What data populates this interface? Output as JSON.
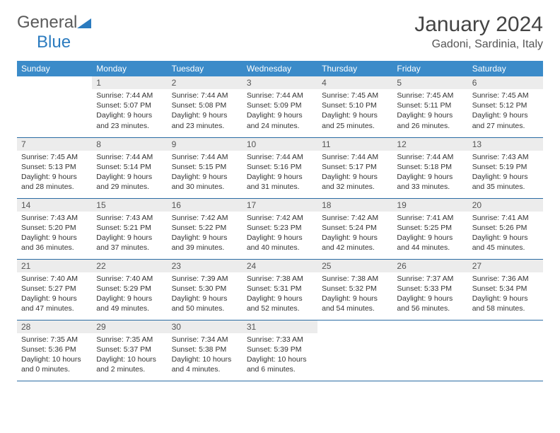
{
  "logo": {
    "text1": "General",
    "text2": "Blue"
  },
  "title": "January 2024",
  "location": "Gadoni, Sardinia, Italy",
  "colors": {
    "header_bg": "#3b8bc9",
    "header_text": "#ffffff",
    "daynum_bg": "#ececec",
    "row_border": "#2b6ca3",
    "logo_gray": "#5a5a5a",
    "logo_blue": "#2b7bbf"
  },
  "weekdays": [
    "Sunday",
    "Monday",
    "Tuesday",
    "Wednesday",
    "Thursday",
    "Friday",
    "Saturday"
  ],
  "start_offset": 1,
  "days": [
    {
      "n": "1",
      "sunrise": "7:44 AM",
      "sunset": "5:07 PM",
      "daylight": "9 hours and 23 minutes."
    },
    {
      "n": "2",
      "sunrise": "7:44 AM",
      "sunset": "5:08 PM",
      "daylight": "9 hours and 23 minutes."
    },
    {
      "n": "3",
      "sunrise": "7:44 AM",
      "sunset": "5:09 PM",
      "daylight": "9 hours and 24 minutes."
    },
    {
      "n": "4",
      "sunrise": "7:45 AM",
      "sunset": "5:10 PM",
      "daylight": "9 hours and 25 minutes."
    },
    {
      "n": "5",
      "sunrise": "7:45 AM",
      "sunset": "5:11 PM",
      "daylight": "9 hours and 26 minutes."
    },
    {
      "n": "6",
      "sunrise": "7:45 AM",
      "sunset": "5:12 PM",
      "daylight": "9 hours and 27 minutes."
    },
    {
      "n": "7",
      "sunrise": "7:45 AM",
      "sunset": "5:13 PM",
      "daylight": "9 hours and 28 minutes."
    },
    {
      "n": "8",
      "sunrise": "7:44 AM",
      "sunset": "5:14 PM",
      "daylight": "9 hours and 29 minutes."
    },
    {
      "n": "9",
      "sunrise": "7:44 AM",
      "sunset": "5:15 PM",
      "daylight": "9 hours and 30 minutes."
    },
    {
      "n": "10",
      "sunrise": "7:44 AM",
      "sunset": "5:16 PM",
      "daylight": "9 hours and 31 minutes."
    },
    {
      "n": "11",
      "sunrise": "7:44 AM",
      "sunset": "5:17 PM",
      "daylight": "9 hours and 32 minutes."
    },
    {
      "n": "12",
      "sunrise": "7:44 AM",
      "sunset": "5:18 PM",
      "daylight": "9 hours and 33 minutes."
    },
    {
      "n": "13",
      "sunrise": "7:43 AM",
      "sunset": "5:19 PM",
      "daylight": "9 hours and 35 minutes."
    },
    {
      "n": "14",
      "sunrise": "7:43 AM",
      "sunset": "5:20 PM",
      "daylight": "9 hours and 36 minutes."
    },
    {
      "n": "15",
      "sunrise": "7:43 AM",
      "sunset": "5:21 PM",
      "daylight": "9 hours and 37 minutes."
    },
    {
      "n": "16",
      "sunrise": "7:42 AM",
      "sunset": "5:22 PM",
      "daylight": "9 hours and 39 minutes."
    },
    {
      "n": "17",
      "sunrise": "7:42 AM",
      "sunset": "5:23 PM",
      "daylight": "9 hours and 40 minutes."
    },
    {
      "n": "18",
      "sunrise": "7:42 AM",
      "sunset": "5:24 PM",
      "daylight": "9 hours and 42 minutes."
    },
    {
      "n": "19",
      "sunrise": "7:41 AM",
      "sunset": "5:25 PM",
      "daylight": "9 hours and 44 minutes."
    },
    {
      "n": "20",
      "sunrise": "7:41 AM",
      "sunset": "5:26 PM",
      "daylight": "9 hours and 45 minutes."
    },
    {
      "n": "21",
      "sunrise": "7:40 AM",
      "sunset": "5:27 PM",
      "daylight": "9 hours and 47 minutes."
    },
    {
      "n": "22",
      "sunrise": "7:40 AM",
      "sunset": "5:29 PM",
      "daylight": "9 hours and 49 minutes."
    },
    {
      "n": "23",
      "sunrise": "7:39 AM",
      "sunset": "5:30 PM",
      "daylight": "9 hours and 50 minutes."
    },
    {
      "n": "24",
      "sunrise": "7:38 AM",
      "sunset": "5:31 PM",
      "daylight": "9 hours and 52 minutes."
    },
    {
      "n": "25",
      "sunrise": "7:38 AM",
      "sunset": "5:32 PM",
      "daylight": "9 hours and 54 minutes."
    },
    {
      "n": "26",
      "sunrise": "7:37 AM",
      "sunset": "5:33 PM",
      "daylight": "9 hours and 56 minutes."
    },
    {
      "n": "27",
      "sunrise": "7:36 AM",
      "sunset": "5:34 PM",
      "daylight": "9 hours and 58 minutes."
    },
    {
      "n": "28",
      "sunrise": "7:35 AM",
      "sunset": "5:36 PM",
      "daylight": "10 hours and 0 minutes."
    },
    {
      "n": "29",
      "sunrise": "7:35 AM",
      "sunset": "5:37 PM",
      "daylight": "10 hours and 2 minutes."
    },
    {
      "n": "30",
      "sunrise": "7:34 AM",
      "sunset": "5:38 PM",
      "daylight": "10 hours and 4 minutes."
    },
    {
      "n": "31",
      "sunrise": "7:33 AM",
      "sunset": "5:39 PM",
      "daylight": "10 hours and 6 minutes."
    }
  ],
  "labels": {
    "sunrise": "Sunrise:",
    "sunset": "Sunset:",
    "daylight": "Daylight:"
  }
}
